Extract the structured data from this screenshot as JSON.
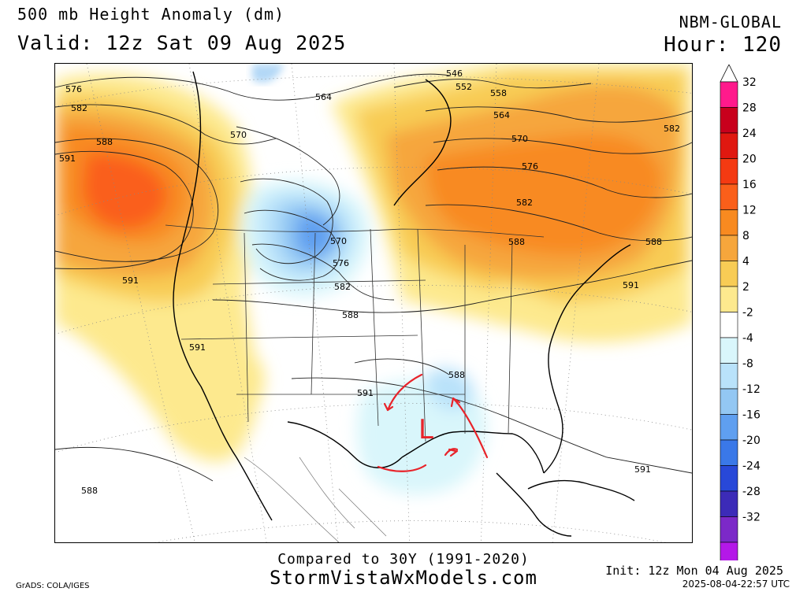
{
  "header": {
    "title": "500 mb Height Anomaly (dm)",
    "valid": "Valid: 12z Sat 09 Aug 2025",
    "model": "NBM-GLOBAL",
    "hour": "Hour: 120"
  },
  "footer": {
    "compared": "Compared to 30Y (1991-2020)",
    "brand": "StormVistaWxModels.com",
    "init": "Init: 12z Mon 04 Aug 2025",
    "credit": "GrADS: COLA/IGES",
    "timestamp": "2025-08-04-22:57 UTC"
  },
  "map": {
    "annotation_low": "L",
    "annotation_color": "#e8232a",
    "contour_labels": [
      {
        "text": "576",
        "id": "label-576-nw"
      },
      {
        "text": "582",
        "id": "label-582-nw"
      },
      {
        "text": "588",
        "id": "label-588-nw"
      },
      {
        "text": "591",
        "id": "label-591-nw"
      },
      {
        "text": "570",
        "id": "label-570-west"
      },
      {
        "text": "564",
        "id": "label-564-north"
      },
      {
        "text": "546",
        "id": "label-546"
      },
      {
        "text": "552",
        "id": "label-552"
      },
      {
        "text": "558",
        "id": "label-558"
      },
      {
        "text": "564",
        "id": "label-564-ne"
      },
      {
        "text": "570",
        "id": "label-570-ne"
      },
      {
        "text": "576",
        "id": "label-576-ne"
      },
      {
        "text": "582",
        "id": "label-582-ne"
      },
      {
        "text": "582",
        "id": "label-582-far-ne"
      },
      {
        "text": "588",
        "id": "label-588-ne"
      },
      {
        "text": "588",
        "id": "label-588-east"
      },
      {
        "text": "591",
        "id": "label-591-east"
      },
      {
        "text": "570",
        "id": "label-570-low"
      },
      {
        "text": "576",
        "id": "label-576-low"
      },
      {
        "text": "582",
        "id": "label-582-low"
      },
      {
        "text": "588",
        "id": "label-588-central"
      },
      {
        "text": "591",
        "id": "label-591-west"
      },
      {
        "text": "591",
        "id": "label-591-sw"
      },
      {
        "text": "591",
        "id": "label-591-south"
      },
      {
        "text": "588",
        "id": "label-588-gulf"
      },
      {
        "text": "591",
        "id": "label-591-se"
      },
      {
        "text": "588",
        "id": "label-588-sw"
      }
    ]
  },
  "colorbar": {
    "levels": [
      "32",
      "28",
      "24",
      "20",
      "16",
      "12",
      "8",
      "4",
      "2",
      "-2",
      "-4",
      "-8",
      "-12",
      "-16",
      "-20",
      "-24",
      "-28",
      "-32"
    ],
    "colors": [
      "#ff1a8c",
      "#c8001c",
      "#e01810",
      "#f43a12",
      "#fa5f1a",
      "#f88a20",
      "#f6a63c",
      "#f8cc55",
      "#fde98e",
      "#ffffff",
      "#d9f6fb",
      "#b9e2fa",
      "#93c7f3",
      "#5f9ff0",
      "#3a78e8",
      "#2848d8",
      "#3c2bb8",
      "#7c29c8",
      "#b418e8"
    ]
  }
}
